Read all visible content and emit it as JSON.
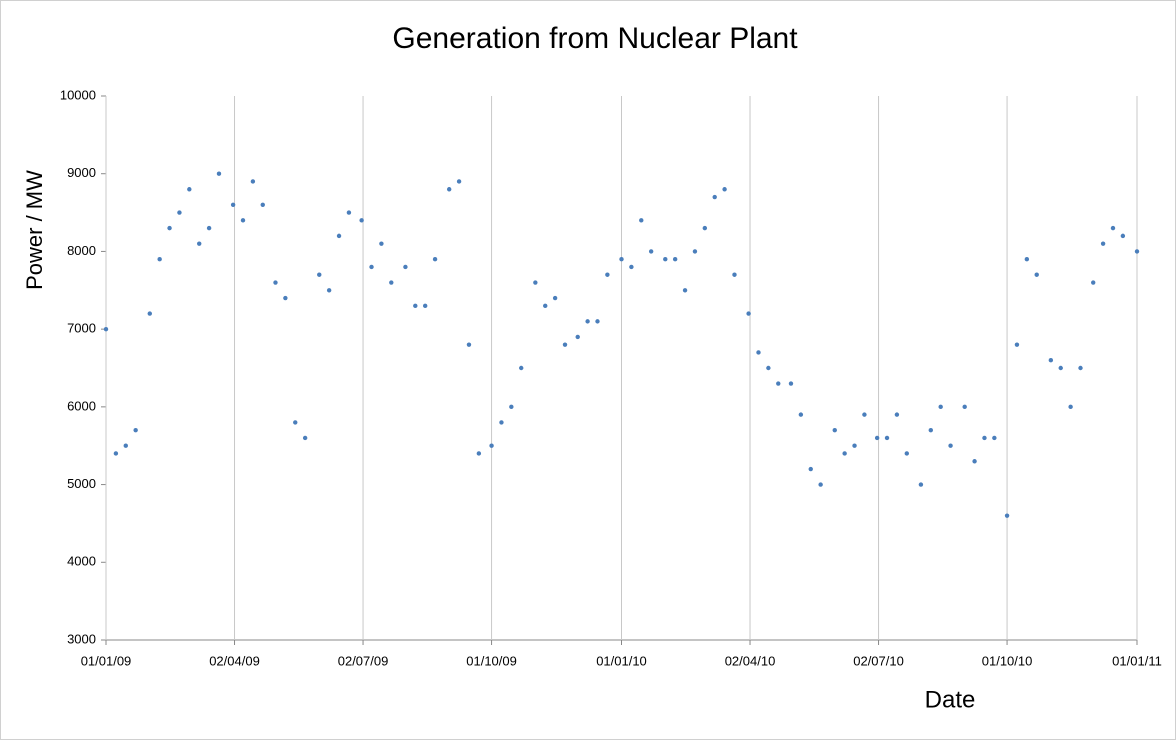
{
  "chart_data": {
    "type": "scatter",
    "title": "Generation from Nuclear Plant",
    "x_label": "Date",
    "y_label": "Power / MW",
    "color": "#4a7ebb",
    "x": [
      "2009-01-01",
      "2009-01-08",
      "2009-01-15",
      "2009-01-22",
      "2009-02-01",
      "2009-02-08",
      "2009-02-15",
      "2009-02-22",
      "2009-03-01",
      "2009-03-08",
      "2009-03-15",
      "2009-03-22",
      "2009-04-01",
      "2009-04-08",
      "2009-04-15",
      "2009-04-22",
      "2009-05-01",
      "2009-05-08",
      "2009-05-15",
      "2009-05-22",
      "2009-06-01",
      "2009-06-08",
      "2009-06-15",
      "2009-06-22",
      "2009-07-01",
      "2009-07-08",
      "2009-07-15",
      "2009-07-22",
      "2009-08-01",
      "2009-08-08",
      "2009-08-15",
      "2009-08-22",
      "2009-09-01",
      "2009-09-08",
      "2009-09-15",
      "2009-09-22",
      "2009-10-01",
      "2009-10-08",
      "2009-10-15",
      "2009-10-22",
      "2009-11-01",
      "2009-11-08",
      "2009-11-15",
      "2009-11-22",
      "2009-12-01",
      "2009-12-08",
      "2009-12-15",
      "2009-12-22",
      "2010-01-01",
      "2010-01-08",
      "2010-01-15",
      "2010-01-22",
      "2010-02-01",
      "2010-02-08",
      "2010-02-15",
      "2010-02-22",
      "2010-03-01",
      "2010-03-08",
      "2010-03-15",
      "2010-03-22",
      "2010-04-01",
      "2010-04-08",
      "2010-04-15",
      "2010-04-22",
      "2010-05-01",
      "2010-05-08",
      "2010-05-15",
      "2010-05-22",
      "2010-06-01",
      "2010-06-08",
      "2010-06-15",
      "2010-06-22",
      "2010-07-01",
      "2010-07-08",
      "2010-07-15",
      "2010-07-22",
      "2010-08-01",
      "2010-08-08",
      "2010-08-15",
      "2010-08-22",
      "2010-09-01",
      "2010-09-08",
      "2010-09-15",
      "2010-09-22",
      "2010-10-01",
      "2010-10-08",
      "2010-10-15",
      "2010-10-22",
      "2010-11-01",
      "2010-11-08",
      "2010-11-15",
      "2010-11-22",
      "2010-12-01",
      "2010-12-08",
      "2010-12-15",
      "2010-12-22",
      "2011-01-01"
    ],
    "values": [
      7000,
      5400,
      5500,
      5700,
      7200,
      7900,
      8300,
      8500,
      8800,
      8100,
      8300,
      9000,
      8600,
      8400,
      8900,
      8600,
      7600,
      7400,
      5800,
      5600,
      7700,
      7500,
      8200,
      8500,
      8400,
      7800,
      8100,
      7600,
      7800,
      7300,
      7300,
      7900,
      8800,
      8900,
      6800,
      5400,
      5500,
      5800,
      6000,
      6500,
      7600,
      7300,
      7400,
      6800,
      6900,
      7100,
      7100,
      7700,
      7900,
      7800,
      8400,
      8000,
      7900,
      7900,
      7500,
      8000,
      8300,
      8700,
      8800,
      7700,
      7200,
      6700,
      6500,
      6300,
      6300,
      5900,
      5200,
      5000,
      5700,
      5400,
      5500,
      5900,
      5600,
      5600,
      5900,
      5400,
      5000,
      5700,
      6000,
      5500,
      6000,
      5300,
      5600,
      5600,
      4600,
      6800,
      7900,
      7700,
      6600,
      6500,
      6000,
      6500,
      7600,
      8100,
      8300,
      8200,
      8000
    ],
    "xlim": [
      "2009-01-01",
      "2011-01-01"
    ],
    "xticks": [
      {
        "value": "2009-01-01",
        "label": "01/01/09"
      },
      {
        "value": "2009-04-02",
        "label": "02/04/09"
      },
      {
        "value": "2009-07-02",
        "label": "02/07/09"
      },
      {
        "value": "2009-10-01",
        "label": "01/10/09"
      },
      {
        "value": "2010-01-01",
        "label": "01/01/10"
      },
      {
        "value": "2010-04-02",
        "label": "02/04/10"
      },
      {
        "value": "2010-07-02",
        "label": "02/07/10"
      },
      {
        "value": "2010-10-01",
        "label": "01/10/10"
      },
      {
        "value": "2011-01-01",
        "label": "01/01/11"
      }
    ],
    "ylim": [
      3000,
      10000
    ],
    "yticks": [
      3000,
      4000,
      5000,
      6000,
      7000,
      8000,
      9000,
      10000
    ],
    "grid": "x"
  }
}
